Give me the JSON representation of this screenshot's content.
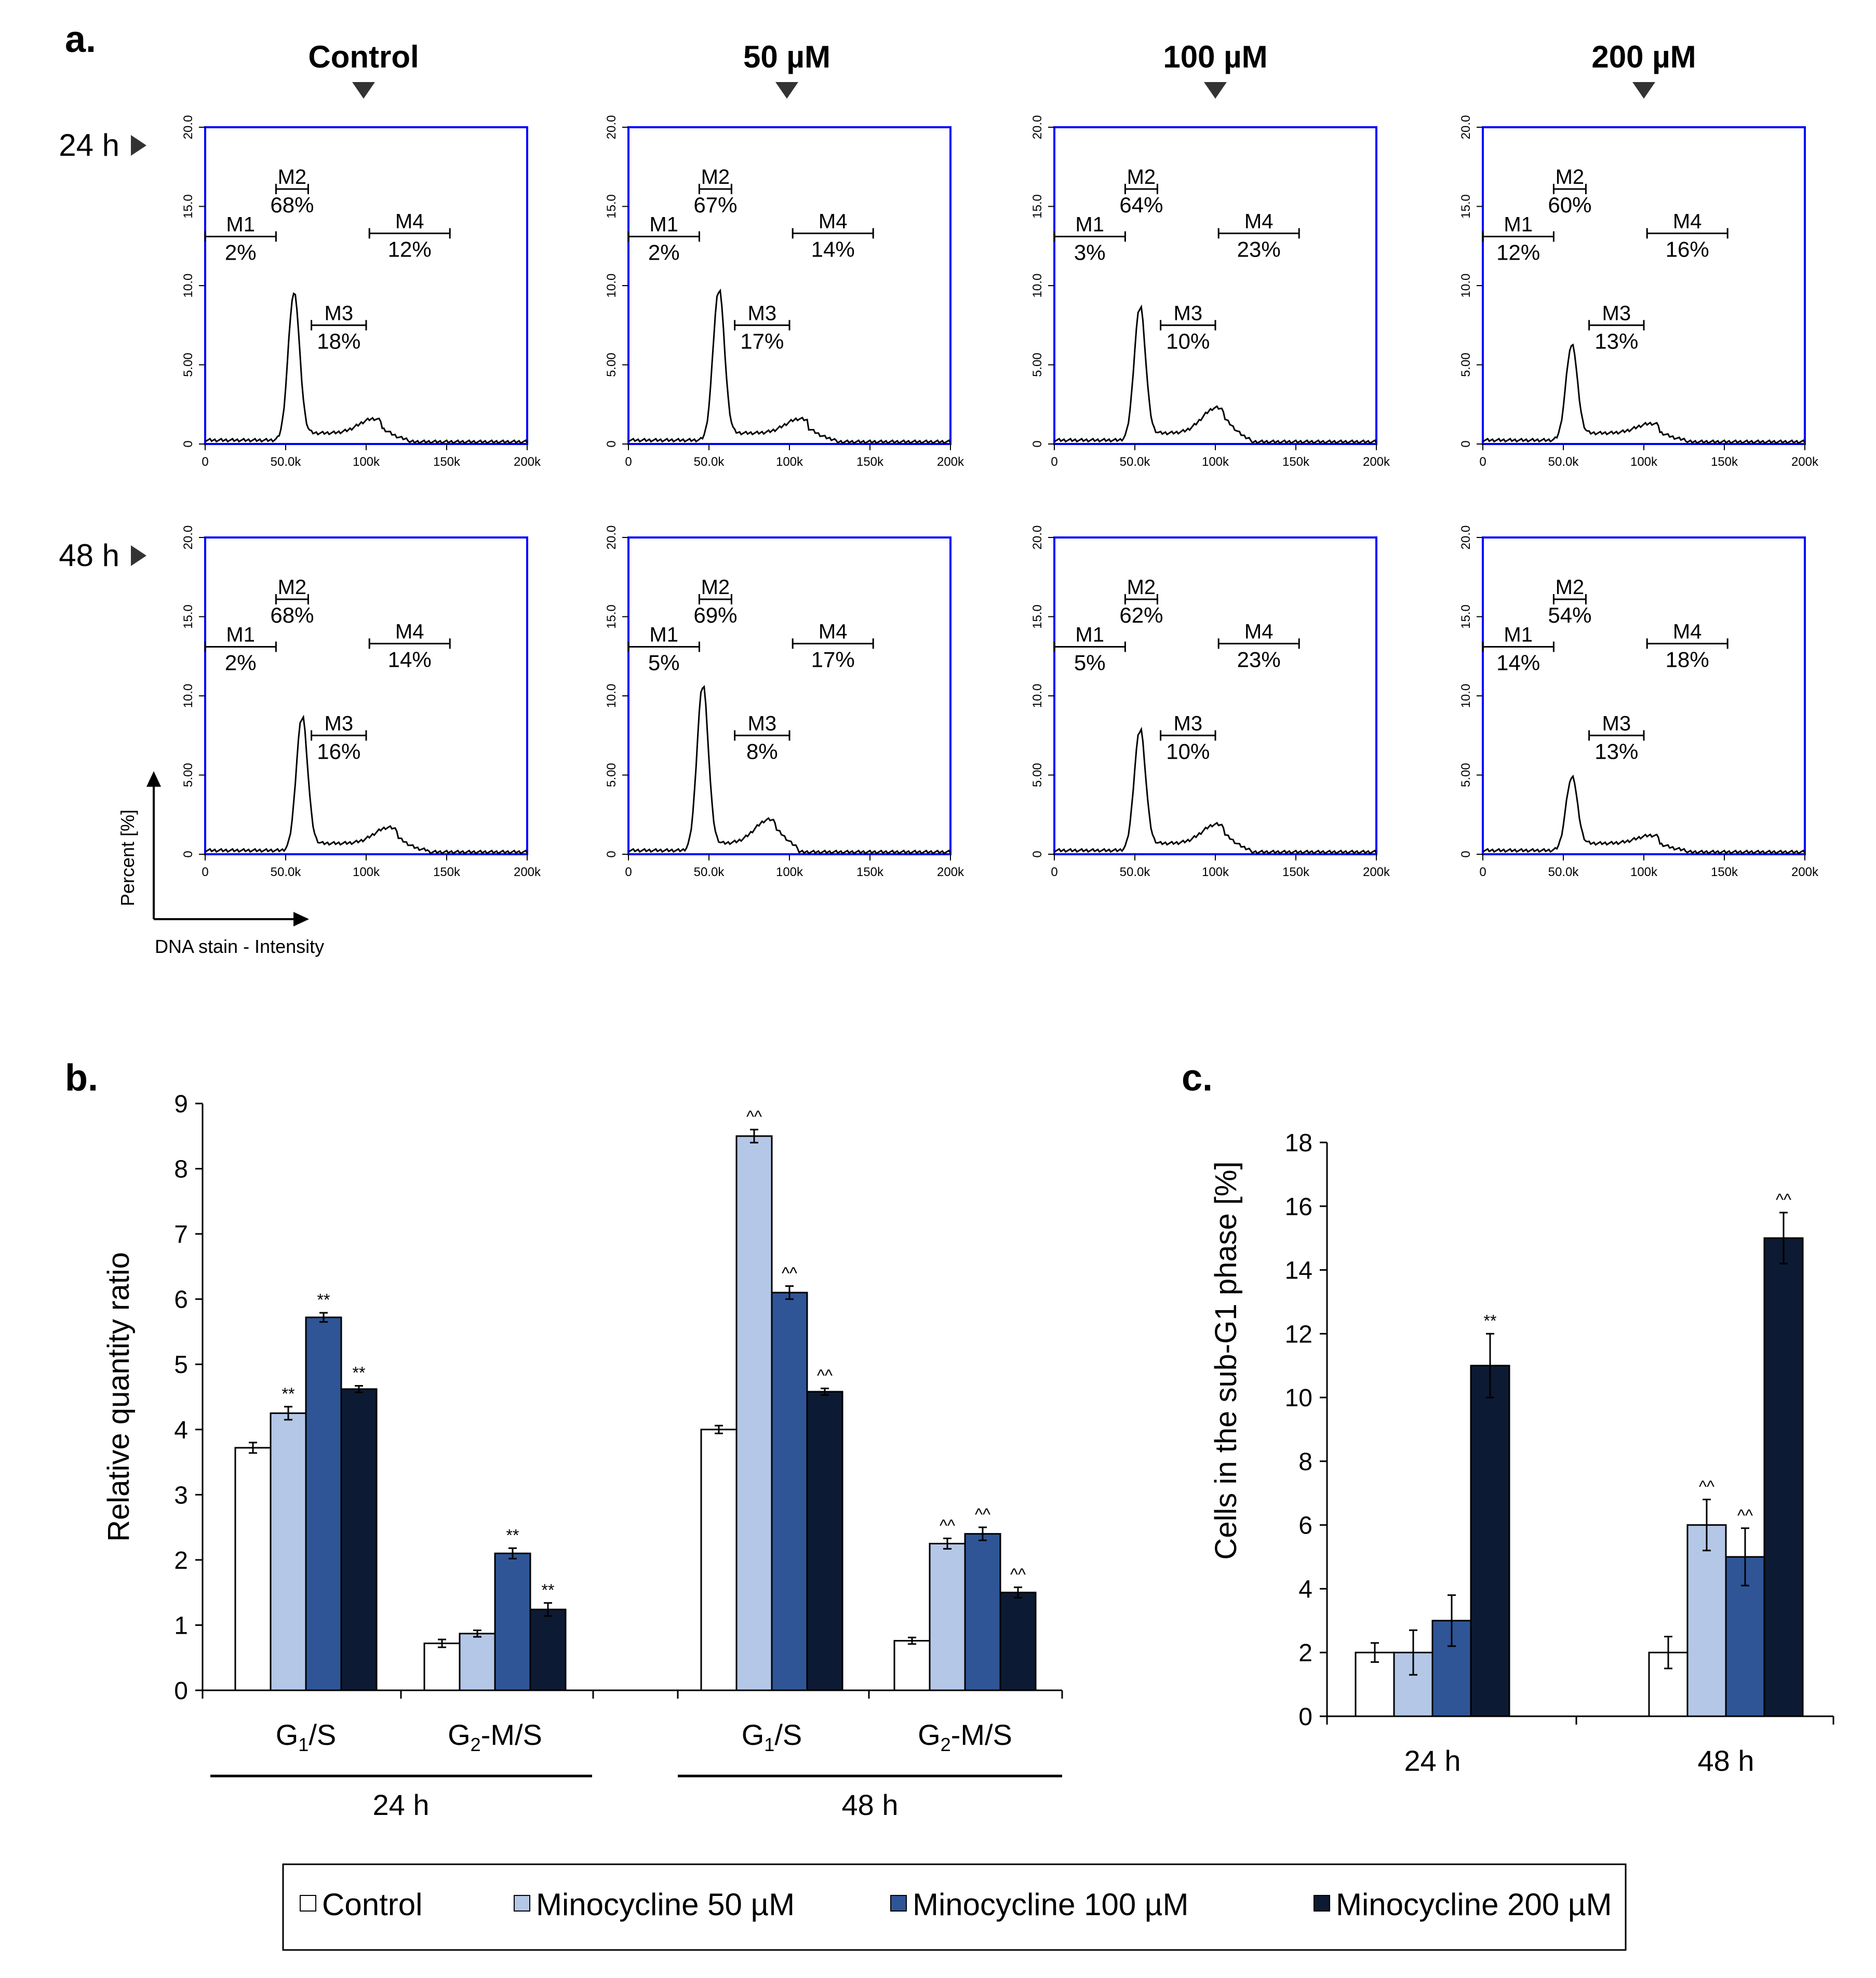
{
  "panel_labels": {
    "a": "a.",
    "b": "b.",
    "c": "c."
  },
  "histograms": {
    "columns": [
      "Control",
      "50 µM",
      "100 µM",
      "200 µM"
    ],
    "rows": [
      "24 h",
      "48 h"
    ],
    "y_ticks": [
      "20.0",
      "15.0",
      "10.0",
      "5.00",
      "0"
    ],
    "x_ticks": [
      "0",
      "50.0k",
      "100k",
      "150k",
      "200k"
    ],
    "ylabel": "Percent [%]",
    "xlabel": "DNA stain - Intensity",
    "colors": {
      "frame": "#0000ff",
      "trace": "#000000"
    }
  },
  "chart_data": [
    {
      "type": "line",
      "panel": "a",
      "title": "",
      "xlim": [
        0,
        200000
      ],
      "ylim": [
        0,
        20
      ],
      "plots": [
        {
          "column": "Control",
          "row": "24 h",
          "peak_x": 55000,
          "peak_y": 9.2,
          "shoulder_y": 0.9,
          "gates": [
            {
              "name": "M1",
              "pct": "2%"
            },
            {
              "name": "M2",
              "pct": "68%"
            },
            {
              "name": "M3",
              "pct": "18%"
            },
            {
              "name": "M4",
              "pct": "12%"
            }
          ]
        },
        {
          "column": "50 µM",
          "row": "24 h",
          "peak_x": 56000,
          "peak_y": 9.4,
          "shoulder_y": 0.9,
          "gates": [
            {
              "name": "M1",
              "pct": "2%"
            },
            {
              "name": "M2",
              "pct": "67%"
            },
            {
              "name": "M3",
              "pct": "17%"
            },
            {
              "name": "M4",
              "pct": "14%"
            }
          ]
        },
        {
          "column": "100 µM",
          "row": "24 h",
          "peak_x": 53000,
          "peak_y": 8.3,
          "shoulder_y": 1.6,
          "gates": [
            {
              "name": "M1",
              "pct": "3%"
            },
            {
              "name": "M2",
              "pct": "64%"
            },
            {
              "name": "M3",
              "pct": "10%"
            },
            {
              "name": "M4",
              "pct": "23%"
            }
          ]
        },
        {
          "column": "200 µM",
          "row": "24 h",
          "peak_x": 55000,
          "peak_y": 5.9,
          "shoulder_y": 0.6,
          "gates": [
            {
              "name": "M1",
              "pct": "12%"
            },
            {
              "name": "M2",
              "pct": "60%"
            },
            {
              "name": "M3",
              "pct": "13%"
            },
            {
              "name": "M4",
              "pct": "16%"
            }
          ]
        },
        {
          "column": "Control",
          "row": "48 h",
          "peak_x": 60000,
          "peak_y": 8.3,
          "shoulder_y": 1.0,
          "gates": [
            {
              "name": "M1",
              "pct": "2%"
            },
            {
              "name": "M2",
              "pct": "68%"
            },
            {
              "name": "M3",
              "pct": "16%"
            },
            {
              "name": "M4",
              "pct": "14%"
            }
          ]
        },
        {
          "column": "50 µM",
          "row": "48 h",
          "peak_x": 46000,
          "peak_y": 10.3,
          "shoulder_y": 1.5,
          "gates": [
            {
              "name": "M1",
              "pct": "5%"
            },
            {
              "name": "M2",
              "pct": "69%"
            },
            {
              "name": "M3",
              "pct": "8%"
            },
            {
              "name": "M4",
              "pct": "17%"
            }
          ]
        },
        {
          "column": "100 µM",
          "row": "48 h",
          "peak_x": 53000,
          "peak_y": 7.5,
          "shoulder_y": 1.2,
          "gates": [
            {
              "name": "M1",
              "pct": "5%"
            },
            {
              "name": "M2",
              "pct": "62%"
            },
            {
              "name": "M3",
              "pct": "10%"
            },
            {
              "name": "M4",
              "pct": "23%"
            }
          ]
        },
        {
          "column": "200 µM",
          "row": "48 h",
          "peak_x": 55000,
          "peak_y": 4.5,
          "shoulder_y": 0.5,
          "gates": [
            {
              "name": "M1",
              "pct": "14%"
            },
            {
              "name": "M2",
              "pct": "54%"
            },
            {
              "name": "M3",
              "pct": "13%"
            },
            {
              "name": "M4",
              "pct": "18%"
            }
          ]
        }
      ]
    },
    {
      "type": "bar",
      "panel": "b",
      "title": "",
      "ylabel": "Relative quantity ratio",
      "ylim": [
        0,
        9
      ],
      "yticks": [
        0,
        1,
        2,
        3,
        4,
        5,
        6,
        7,
        8,
        9
      ],
      "groups": [
        {
          "category": "G1/S",
          "period": "24 h",
          "values": [
            3.72,
            4.25,
            5.72,
            4.62
          ],
          "errors": [
            0.08,
            0.1,
            0.07,
            0.05
          ],
          "marks": [
            "",
            "**",
            "**",
            "**"
          ]
        },
        {
          "category": "G2-M/S",
          "period": "24 h",
          "values": [
            0.72,
            0.87,
            2.1,
            1.24
          ],
          "errors": [
            0.06,
            0.05,
            0.08,
            0.1
          ],
          "marks": [
            "",
            "",
            "**",
            "**"
          ]
        },
        {
          "category": "G1/S",
          "period": "48 h",
          "values": [
            4.0,
            8.5,
            6.1,
            4.58
          ],
          "errors": [
            0.06,
            0.1,
            0.1,
            0.05
          ],
          "marks": [
            "",
            "^^",
            "^^",
            "^^"
          ]
        },
        {
          "category": "G2-M/S",
          "period": "48 h",
          "values": [
            0.76,
            2.25,
            2.4,
            1.5
          ],
          "errors": [
            0.05,
            0.08,
            0.1,
            0.08
          ],
          "marks": [
            "",
            "^^",
            "^^",
            "^^"
          ]
        }
      ],
      "periods": [
        "24 h",
        "48 h"
      ]
    },
    {
      "type": "bar",
      "panel": "c",
      "title": "",
      "ylabel": "Cells in the sub-G1 phase [%]",
      "ylim": [
        0,
        18
      ],
      "yticks": [
        0,
        2,
        4,
        6,
        8,
        10,
        12,
        14,
        16,
        18
      ],
      "categories": [
        "24 h",
        "48 h"
      ],
      "series_values": [
        [
          2.0,
          2.0,
          3.0,
          11.0
        ],
        [
          2.0,
          6.0,
          5.0,
          15.0
        ]
      ],
      "errors": [
        [
          0.3,
          0.7,
          0.8,
          1.0
        ],
        [
          0.5,
          0.8,
          0.9,
          0.8
        ]
      ],
      "marks": [
        [
          "",
          "",
          "",
          "**"
        ],
        [
          "",
          "^^",
          "^^",
          "^^"
        ]
      ]
    }
  ],
  "legend": {
    "items": [
      {
        "label": "Control",
        "color": "#ffffff"
      },
      {
        "label": "Minocycline 50 µM",
        "color": "#b4c7e7"
      },
      {
        "label": "Minocycline 100 µM",
        "color": "#2f5597"
      },
      {
        "label": "Minocycline 200 µM",
        "color": "#0d1a33"
      }
    ]
  }
}
